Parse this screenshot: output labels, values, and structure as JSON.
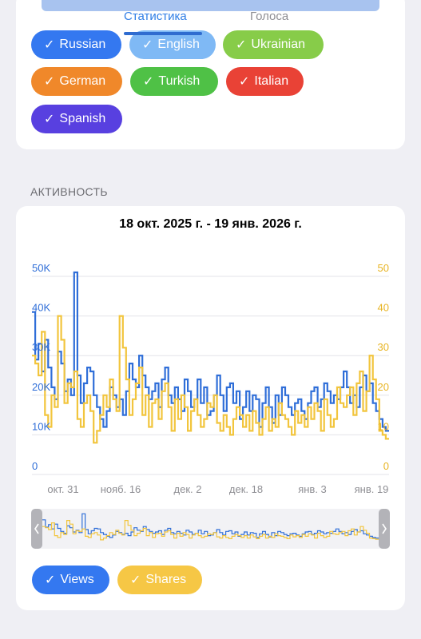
{
  "tabs": [
    {
      "label": "Статистика",
      "active": true
    },
    {
      "label": "Голоса",
      "active": false
    }
  ],
  "languages": [
    {
      "label": "Russian",
      "checked": true,
      "color": "#3478f0"
    },
    {
      "label": "English",
      "checked": true,
      "color": "#7fb9f5"
    },
    {
      "label": "Ukrainian",
      "checked": true,
      "color": "#87cc49"
    },
    {
      "label": "German",
      "checked": true,
      "color": "#f0882a"
    },
    {
      "label": "Turkish",
      "checked": true,
      "color": "#4fc146"
    },
    {
      "label": "Italian",
      "checked": true,
      "color": "#e94236"
    },
    {
      "label": "Spanish",
      "checked": true,
      "color": "#5840e0"
    }
  ],
  "check_mark": "✓",
  "section_title": "АКТИВНОСТЬ",
  "chart": {
    "title": "18 окт. 2025 г. - 19 янв. 2026 г.",
    "left_ticks": [
      "0",
      "10K",
      "20K",
      "30K",
      "40K",
      "50K"
    ],
    "right_ticks": [
      "0",
      "10",
      "20",
      "30",
      "40",
      "50"
    ],
    "x_ticks": [
      "окт. 31",
      "нояб. 16",
      "дек. 2",
      "дек. 18",
      "янв. 3",
      "янв. 19"
    ]
  },
  "chart_data": {
    "type": "line",
    "left_ylim": [
      0,
      50000
    ],
    "right_ylim": [
      0,
      50
    ],
    "series": [
      {
        "name": "Views",
        "color": "#2f6ed8",
        "axis": "left",
        "values": [
          41000,
          29000,
          33000,
          26000,
          34000,
          27000,
          22000,
          19000,
          31000,
          28000,
          21000,
          24000,
          20000,
          51000,
          25000,
          18000,
          23000,
          27000,
          26000,
          20000,
          17000,
          14000,
          12000,
          16000,
          22000,
          20000,
          17000,
          19000,
          15000,
          21000,
          28000,
          24000,
          22000,
          30000,
          25000,
          22000,
          19000,
          21000,
          23000,
          17000,
          24000,
          27000,
          20000,
          18000,
          22000,
          19000,
          16000,
          24000,
          21000,
          17000,
          19000,
          24000,
          18000,
          22000,
          15000,
          16000,
          20000,
          25000,
          20000,
          16000,
          22000,
          23000,
          18000,
          21000,
          14000,
          17000,
          21000,
          16000,
          20000,
          19000,
          12000,
          18000,
          22000,
          17000,
          13000,
          20000,
          15000,
          22000,
          20000,
          17000,
          15000,
          18000,
          19000,
          16000,
          14000,
          18000,
          21000,
          22000,
          17000,
          19000,
          23000,
          21000,
          18000,
          20000,
          19000,
          22000,
          26000,
          22000,
          18000,
          20000,
          17000,
          22000,
          25000,
          21000,
          23000,
          18000,
          16000,
          14000,
          12000,
          11000
        ]
      },
      {
        "name": "Shares",
        "color": "#f2c53d",
        "axis": "right",
        "values": [
          30,
          28,
          25,
          36,
          15,
          12,
          20,
          17,
          40,
          34,
          18,
          23,
          22,
          26,
          14,
          12,
          18,
          20,
          16,
          8,
          11,
          15,
          20,
          17,
          24,
          19,
          16,
          40,
          32,
          24,
          15,
          19,
          23,
          27,
          15,
          20,
          12,
          18,
          19,
          14,
          21,
          23,
          17,
          11,
          19,
          14,
          20,
          17,
          11,
          16,
          19,
          15,
          12,
          14,
          18,
          17,
          20,
          13,
          11,
          15,
          12,
          10,
          14,
          17,
          15,
          12,
          15,
          11,
          16,
          13,
          10,
          14,
          17,
          11,
          14,
          12,
          18,
          15,
          14,
          12,
          10,
          16,
          13,
          15,
          12,
          17,
          14,
          18,
          16,
          11,
          19,
          15,
          12,
          14,
          22,
          18,
          17,
          20,
          22,
          15,
          23,
          26,
          16,
          21,
          30,
          24,
          19,
          11,
          10,
          9
        ]
      }
    ]
  },
  "legend": [
    {
      "label": "Views",
      "checked": true,
      "color": "#3478f0"
    },
    {
      "label": "Shares",
      "checked": true,
      "color": "#f6c745"
    }
  ]
}
